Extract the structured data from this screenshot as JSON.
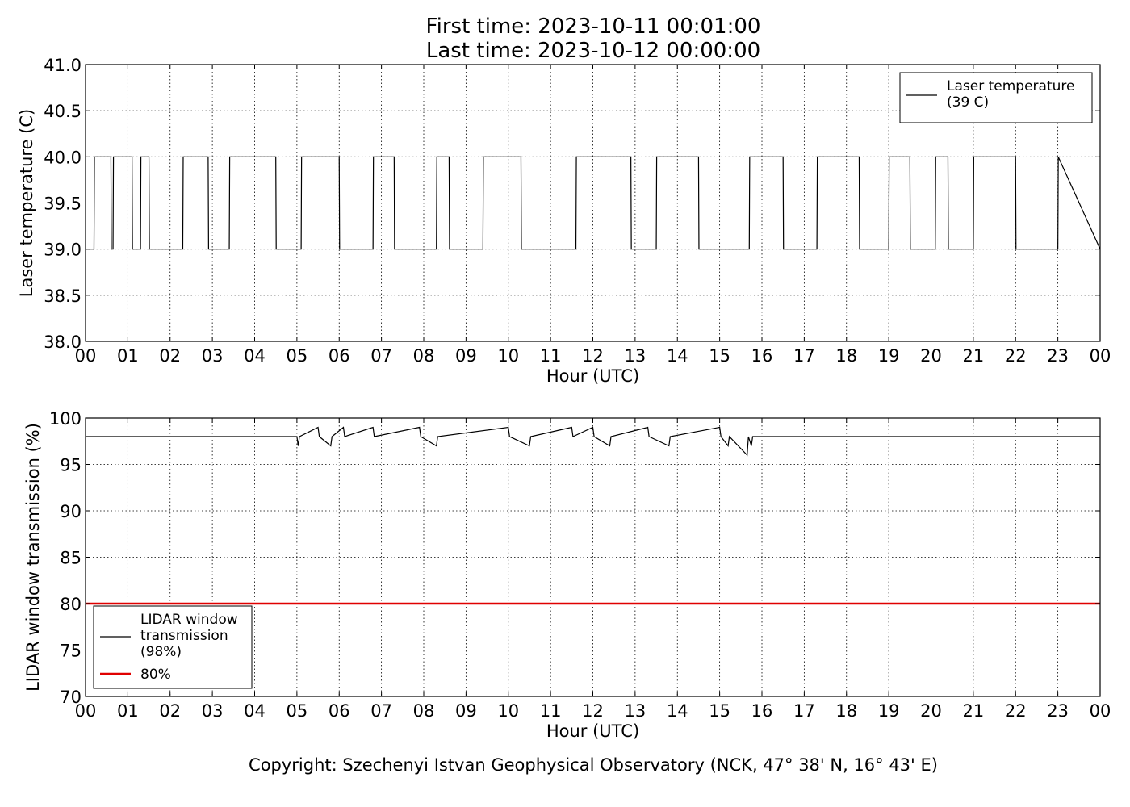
{
  "figure": {
    "title_line1": "First time: 2023-10-11 00:01:00",
    "title_line2": "Last time: 2023-10-12 00:00:00",
    "copyright": "Copyright: Szechenyi Istvan Geophysical Observatory (NCK, 47° 38' N, 16° 43' E)"
  },
  "chart_data": [
    {
      "type": "line",
      "xlabel": "Hour (UTC)",
      "ylabel": "Laser temperature (C)",
      "xlim": [
        0,
        24
      ],
      "ylim": [
        38.0,
        41.0
      ],
      "x_ticks": [
        0,
        1,
        2,
        3,
        4,
        5,
        6,
        7,
        8,
        9,
        10,
        11,
        12,
        13,
        14,
        15,
        16,
        17,
        18,
        19,
        20,
        21,
        22,
        23,
        24
      ],
      "x_tick_labels": [
        "00",
        "01",
        "02",
        "03",
        "04",
        "05",
        "06",
        "07",
        "08",
        "09",
        "10",
        "11",
        "12",
        "13",
        "14",
        "15",
        "16",
        "17",
        "18",
        "19",
        "20",
        "21",
        "22",
        "23",
        "00"
      ],
      "y_ticks": [
        38.0,
        38.5,
        39.0,
        39.5,
        40.0,
        40.5,
        41.0
      ],
      "y_tick_labels": [
        "38.0",
        "38.5",
        "39.0",
        "39.5",
        "40.0",
        "40.5",
        "41.0"
      ],
      "grid": true,
      "legend_position": "upper right",
      "legend": [
        {
          "label": "Laser temperature\n(39 C)",
          "color": "#000000"
        }
      ],
      "series": [
        {
          "name": "Laser temperature (39 C)",
          "color": "#000000",
          "description": "Binary switching between 39.0 and 40.0 C; long steady stretches at 40.0 and 39.0 separated by rapid toggling",
          "x": [
            0.0,
            0.2,
            0.21,
            0.6,
            0.61,
            0.65,
            0.66,
            1.1,
            1.11,
            1.3,
            1.31,
            1.5,
            1.51,
            2.3,
            2.31,
            2.9,
            2.91,
            3.4,
            3.41,
            4.5,
            4.51,
            5.1,
            5.11,
            6.0,
            6.01,
            6.8,
            6.81,
            7.3,
            7.31,
            8.3,
            8.31,
            8.6,
            8.61,
            9.4,
            9.41,
            10.3,
            10.31,
            11.6,
            11.61,
            12.9,
            12.91,
            13.5,
            13.51,
            14.5,
            14.51,
            15.0,
            15.01,
            15.7,
            15.71,
            16.5,
            16.51,
            17.3,
            17.31,
            18.3,
            18.31,
            19.0,
            19.01,
            19.5,
            19.51,
            20.1,
            20.11,
            20.4,
            20.41,
            21.0,
            21.01,
            22.0,
            22.01,
            23.0,
            23.01,
            24.0
          ],
          "y": [
            39.0,
            39.0,
            40.0,
            40.0,
            39.0,
            39.0,
            40.0,
            40.0,
            39.0,
            39.0,
            40.0,
            40.0,
            39.0,
            39.0,
            40.0,
            40.0,
            39.0,
            39.0,
            40.0,
            40.0,
            39.0,
            39.0,
            40.0,
            40.0,
            39.0,
            39.0,
            40.0,
            40.0,
            39.0,
            39.0,
            40.0,
            40.0,
            39.0,
            39.0,
            40.0,
            40.0,
            39.0,
            39.0,
            40.0,
            40.0,
            39.0,
            39.0,
            40.0,
            40.0,
            39.0,
            39.0,
            39.0,
            39.0,
            40.0,
            40.0,
            39.0,
            39.0,
            40.0,
            40.0,
            39.0,
            39.0,
            40.0,
            40.0,
            39.0,
            39.0,
            40.0,
            40.0,
            39.0,
            39.0,
            40.0,
            40.0,
            39.0,
            39.0,
            40.0,
            39.0
          ]
        }
      ]
    },
    {
      "type": "line",
      "xlabel": "Hour (UTC)",
      "ylabel": "LIDAR window transmission (%)",
      "xlim": [
        0,
        24
      ],
      "ylim": [
        70,
        100
      ],
      "x_ticks": [
        0,
        1,
        2,
        3,
        4,
        5,
        6,
        7,
        8,
        9,
        10,
        11,
        12,
        13,
        14,
        15,
        16,
        17,
        18,
        19,
        20,
        21,
        22,
        23,
        24
      ],
      "x_tick_labels": [
        "00",
        "01",
        "02",
        "03",
        "04",
        "05",
        "06",
        "07",
        "08",
        "09",
        "10",
        "11",
        "12",
        "13",
        "14",
        "15",
        "16",
        "17",
        "18",
        "19",
        "20",
        "21",
        "22",
        "23",
        "00"
      ],
      "y_ticks": [
        70,
        75,
        80,
        85,
        90,
        95,
        100
      ],
      "y_tick_labels": [
        "70",
        "75",
        "80",
        "85",
        "90",
        "95",
        "100"
      ],
      "grid": true,
      "legend_position": "lower left",
      "legend": [
        {
          "label": "LIDAR window\ntransmission\n(98%)",
          "color": "#000000"
        },
        {
          "label": "80%",
          "color": "#e00000"
        }
      ],
      "series": [
        {
          "name": "LIDAR window transmission (98%)",
          "color": "#000000",
          "description": "Steady at 98% except between ~05:00 and ~16:00 where it fluctuates between 97 and 99, with a dip near 96 at ~15:40",
          "x": [
            0.0,
            5.0,
            5.03,
            5.06,
            5.5,
            5.53,
            5.8,
            5.83,
            6.1,
            6.13,
            6.8,
            6.83,
            7.9,
            7.93,
            8.3,
            8.33,
            10.0,
            10.03,
            10.5,
            10.53,
            11.5,
            11.53,
            12.0,
            12.03,
            12.4,
            12.43,
            13.3,
            13.33,
            13.8,
            13.83,
            15.0,
            15.03,
            15.2,
            15.23,
            15.65,
            15.68,
            15.75,
            15.78,
            16.1,
            24.0
          ],
          "y": [
            98,
            98,
            97,
            98,
            99,
            98,
            97,
            98,
            99,
            98,
            99,
            98,
            99,
            98,
            97,
            98,
            99,
            98,
            97,
            98,
            99,
            98,
            99,
            98,
            97,
            98,
            99,
            98,
            97,
            98,
            99,
            98,
            97,
            98,
            96,
            98,
            97,
            98,
            98,
            98
          ]
        },
        {
          "name": "80%",
          "color": "#e00000",
          "x": [
            0,
            24
          ],
          "y": [
            80,
            80
          ]
        }
      ]
    }
  ]
}
